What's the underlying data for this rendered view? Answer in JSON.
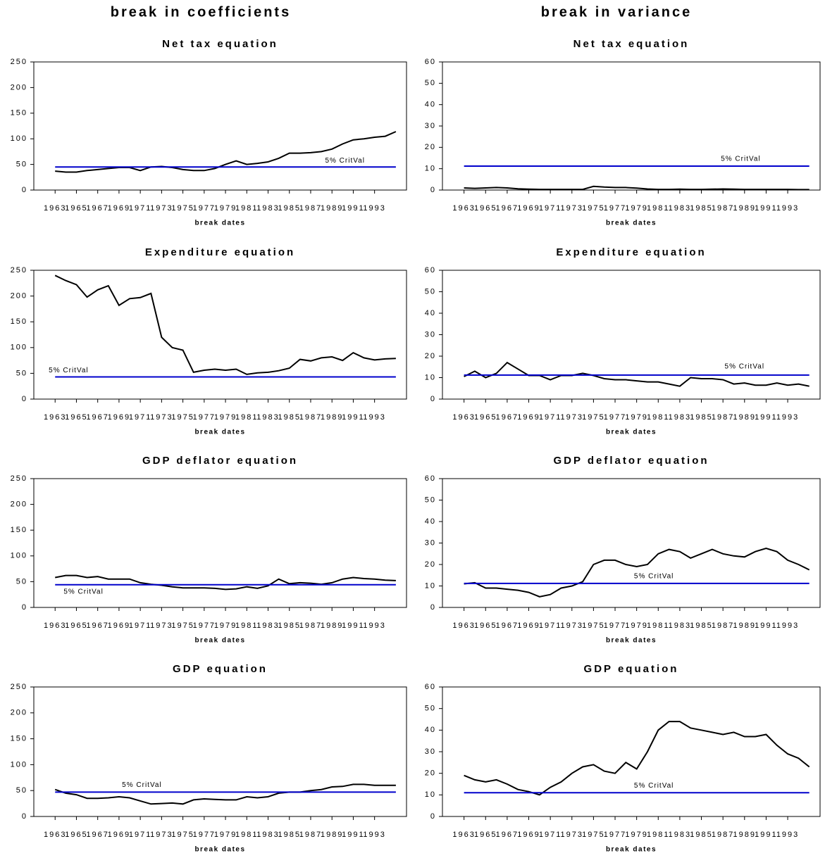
{
  "column_titles": [
    "break in coefficients",
    "break in variance"
  ],
  "chart_data": [
    {
      "type": "line",
      "title": "Net tax equation",
      "xlabel": "break dates",
      "xlim": [
        1961,
        1996
      ],
      "xticks": [
        1963,
        1965,
        1967,
        1969,
        1971,
        1973,
        1975,
        1977,
        1979,
        1981,
        1983,
        1985,
        1987,
        1989,
        1991,
        1993
      ],
      "ylim": [
        0,
        250
      ],
      "yticks": [
        0,
        50,
        100,
        150,
        200,
        250
      ],
      "x": [
        1963,
        1964,
        1965,
        1966,
        1967,
        1968,
        1969,
        1970,
        1971,
        1972,
        1973,
        1974,
        1975,
        1976,
        1977,
        1978,
        1979,
        1980,
        1981,
        1982,
        1983,
        1984,
        1985,
        1986,
        1987,
        1988,
        1989,
        1990,
        1991,
        1992,
        1993,
        1994,
        1995
      ],
      "series": [
        {
          "color": "#000000",
          "values": [
            37,
            35,
            35,
            38,
            40,
            42,
            44,
            44,
            38,
            45,
            46,
            44,
            40,
            38,
            38,
            42,
            50,
            57,
            50,
            52,
            55,
            62,
            72,
            72,
            73,
            75,
            80,
            90,
            98,
            100,
            103,
            105,
            114
          ]
        }
      ],
      "critical_line": {
        "value": 45,
        "label": "5% CritVal",
        "color": "#0000cc"
      }
    },
    {
      "type": "line",
      "title": "Net tax equation",
      "xlabel": "break dates",
      "xlim": [
        1961,
        1996
      ],
      "xticks": [
        1963,
        1965,
        1967,
        1969,
        1971,
        1973,
        1975,
        1977,
        1979,
        1981,
        1983,
        1985,
        1987,
        1989,
        1991,
        1993
      ],
      "ylim": [
        0,
        60
      ],
      "yticks": [
        0,
        10,
        20,
        30,
        40,
        50,
        60
      ],
      "x": [
        1963,
        1964,
        1965,
        1966,
        1967,
        1968,
        1969,
        1970,
        1971,
        1972,
        1973,
        1974,
        1975,
        1976,
        1977,
        1978,
        1979,
        1980,
        1981,
        1982,
        1983,
        1984,
        1985,
        1986,
        1987,
        1988,
        1989,
        1990,
        1991,
        1992,
        1993,
        1994,
        1995
      ],
      "series": [
        {
          "color": "#000000",
          "values": [
            1.0,
            0.8,
            1.0,
            1.2,
            1.0,
            0.6,
            0.4,
            0.3,
            0.3,
            0.3,
            0.3,
            0.3,
            1.7,
            1.4,
            1.2,
            1.2,
            0.9,
            0.5,
            0.3,
            0.3,
            0.4,
            0.3,
            0.3,
            0.4,
            0.5,
            0.4,
            0.3,
            0.3,
            0.3,
            0.3,
            0.3,
            0.2,
            0.2
          ]
        }
      ],
      "critical_line": {
        "value": 11.2,
        "label": "5% CritVal",
        "color": "#0000cc"
      }
    },
    {
      "type": "line",
      "title": "Expenditure equation",
      "xlabel": "break dates",
      "xlim": [
        1961,
        1996
      ],
      "xticks": [
        1963,
        1965,
        1967,
        1969,
        1971,
        1973,
        1975,
        1977,
        1979,
        1981,
        1983,
        1985,
        1987,
        1989,
        1991,
        1993
      ],
      "ylim": [
        0,
        250
      ],
      "yticks": [
        0,
        50,
        100,
        150,
        200,
        250
      ],
      "x": [
        1963,
        1964,
        1965,
        1966,
        1967,
        1968,
        1969,
        1970,
        1971,
        1972,
        1973,
        1974,
        1975,
        1976,
        1977,
        1978,
        1979,
        1980,
        1981,
        1982,
        1983,
        1984,
        1985,
        1986,
        1987,
        1988,
        1989,
        1990,
        1991,
        1992,
        1993,
        1994,
        1995
      ],
      "series": [
        {
          "color": "#000000",
          "values": [
            240,
            230,
            222,
            198,
            212,
            220,
            182,
            195,
            197,
            205,
            120,
            100,
            95,
            52,
            56,
            58,
            56,
            58,
            48,
            51,
            52,
            55,
            60,
            77,
            74,
            80,
            82,
            75,
            90,
            80,
            76,
            78,
            79
          ]
        }
      ],
      "critical_line": {
        "value": 43,
        "label": "5% CritVal",
        "color": "#0000cc"
      }
    },
    {
      "type": "line",
      "title": "Expenditure equation",
      "xlabel": "break dates",
      "xlim": [
        1961,
        1996
      ],
      "xticks": [
        1963,
        1965,
        1967,
        1969,
        1971,
        1973,
        1975,
        1977,
        1979,
        1981,
        1983,
        1985,
        1987,
        1989,
        1991,
        1993
      ],
      "ylim": [
        0,
        60
      ],
      "yticks": [
        0,
        10,
        20,
        30,
        40,
        50,
        60
      ],
      "x": [
        1963,
        1964,
        1965,
        1966,
        1967,
        1968,
        1969,
        1970,
        1971,
        1972,
        1973,
        1974,
        1975,
        1976,
        1977,
        1978,
        1979,
        1980,
        1981,
        1982,
        1983,
        1984,
        1985,
        1986,
        1987,
        1988,
        1989,
        1990,
        1991,
        1992,
        1993,
        1994,
        1995
      ],
      "series": [
        {
          "color": "#000000",
          "values": [
            10.5,
            13,
            10,
            12,
            17,
            14,
            11,
            11,
            9,
            11,
            11,
            12,
            11,
            9.5,
            9,
            9,
            8.5,
            8,
            8,
            7,
            6,
            10,
            9.5,
            9.5,
            9,
            7,
            7.5,
            6.5,
            6.5,
            7.5,
            6.5,
            7,
            6
          ]
        }
      ],
      "critical_line": {
        "value": 11.2,
        "label": "5% CritVal",
        "color": "#0000cc"
      }
    },
    {
      "type": "line",
      "title": "GDP deflator equation",
      "xlabel": "break dates",
      "xlim": [
        1961,
        1996
      ],
      "xticks": [
        1963,
        1965,
        1967,
        1969,
        1971,
        1973,
        1975,
        1977,
        1979,
        1981,
        1983,
        1985,
        1987,
        1989,
        1991,
        1993
      ],
      "ylim": [
        0,
        250
      ],
      "yticks": [
        0,
        50,
        100,
        150,
        200,
        250
      ],
      "x": [
        1963,
        1964,
        1965,
        1966,
        1967,
        1968,
        1969,
        1970,
        1971,
        1972,
        1973,
        1974,
        1975,
        1976,
        1977,
        1978,
        1979,
        1980,
        1981,
        1982,
        1983,
        1984,
        1985,
        1986,
        1987,
        1988,
        1989,
        1990,
        1991,
        1992,
        1993,
        1994,
        1995
      ],
      "series": [
        {
          "color": "#000000",
          "values": [
            58,
            62,
            62,
            58,
            60,
            55,
            55,
            55,
            48,
            45,
            43,
            40,
            38,
            38,
            38,
            37,
            35,
            36,
            40,
            37,
            42,
            55,
            46,
            48,
            47,
            45,
            48,
            55,
            58,
            56,
            55,
            53,
            52
          ]
        }
      ],
      "critical_line": {
        "value": 44,
        "label": "5% CritVal",
        "color": "#0000cc"
      }
    },
    {
      "type": "line",
      "title": "GDP deflator equation",
      "xlabel": "break dates",
      "xlim": [
        1961,
        1996
      ],
      "xticks": [
        1963,
        1965,
        1967,
        1969,
        1971,
        1973,
        1975,
        1977,
        1979,
        1981,
        1983,
        1985,
        1987,
        1989,
        1991,
        1993
      ],
      "ylim": [
        0,
        60
      ],
      "yticks": [
        0,
        10,
        20,
        30,
        40,
        50,
        60
      ],
      "x": [
        1963,
        1964,
        1965,
        1966,
        1967,
        1968,
        1969,
        1970,
        1971,
        1972,
        1973,
        1974,
        1975,
        1976,
        1977,
        1978,
        1979,
        1980,
        1981,
        1982,
        1983,
        1984,
        1985,
        1986,
        1987,
        1988,
        1989,
        1990,
        1991,
        1992,
        1993,
        1994,
        1995
      ],
      "series": [
        {
          "color": "#000000",
          "values": [
            11,
            11.5,
            9,
            9,
            8.5,
            8,
            7,
            5,
            6,
            9,
            10,
            12,
            20,
            22,
            22,
            20,
            19,
            20,
            25,
            27,
            26,
            23,
            25,
            27,
            25,
            24,
            23.5,
            26,
            27.5,
            26,
            22,
            20,
            17.5
          ]
        }
      ],
      "critical_line": {
        "value": 11.2,
        "label": "5% CritVal",
        "color": "#0000cc"
      }
    },
    {
      "type": "line",
      "title": "GDP equation",
      "xlabel": "break dates",
      "xlim": [
        1961,
        1996
      ],
      "xticks": [
        1963,
        1965,
        1967,
        1969,
        1971,
        1973,
        1975,
        1977,
        1979,
        1981,
        1983,
        1985,
        1987,
        1989,
        1991,
        1993
      ],
      "ylim": [
        0,
        250
      ],
      "yticks": [
        0,
        50,
        100,
        150,
        200,
        250
      ],
      "x": [
        1963,
        1964,
        1965,
        1966,
        1967,
        1968,
        1969,
        1970,
        1971,
        1972,
        1973,
        1974,
        1975,
        1976,
        1977,
        1978,
        1979,
        1980,
        1981,
        1982,
        1983,
        1984,
        1985,
        1986,
        1987,
        1988,
        1989,
        1990,
        1991,
        1992,
        1993,
        1994,
        1995
      ],
      "series": [
        {
          "color": "#000000",
          "values": [
            52,
            45,
            42,
            35,
            35,
            36,
            38,
            36,
            30,
            24,
            25,
            26,
            24,
            32,
            34,
            33,
            32,
            32,
            38,
            36,
            38,
            45,
            47,
            47,
            50,
            52,
            57,
            58,
            62,
            62,
            60,
            60,
            60
          ]
        }
      ],
      "critical_line": {
        "value": 47,
        "label": "5% CritVal",
        "color": "#0000cc"
      }
    },
    {
      "type": "line",
      "title": "GDP equation",
      "xlabel": "break dates",
      "xlim": [
        1961,
        1996
      ],
      "xticks": [
        1963,
        1965,
        1967,
        1969,
        1971,
        1973,
        1975,
        1977,
        1979,
        1981,
        1983,
        1985,
        1987,
        1989,
        1991,
        1993
      ],
      "ylim": [
        0,
        60
      ],
      "yticks": [
        0,
        10,
        20,
        30,
        40,
        50,
        60
      ],
      "x": [
        1963,
        1964,
        1965,
        1966,
        1967,
        1968,
        1969,
        1970,
        1971,
        1972,
        1973,
        1974,
        1975,
        1976,
        1977,
        1978,
        1979,
        1980,
        1981,
        1982,
        1983,
        1984,
        1985,
        1986,
        1987,
        1988,
        1989,
        1990,
        1991,
        1992,
        1993,
        1994,
        1995
      ],
      "series": [
        {
          "color": "#000000",
          "values": [
            19,
            17,
            16,
            17,
            15,
            12.5,
            11.5,
            10,
            13.5,
            16,
            20,
            23,
            24,
            21,
            20,
            25,
            22,
            30,
            40,
            44,
            44,
            41,
            40,
            39,
            38,
            39,
            37,
            37,
            38,
            33,
            29,
            27,
            23
          ]
        }
      ],
      "critical_line": {
        "value": 11,
        "label": "5% CritVal",
        "color": "#0000cc"
      }
    }
  ]
}
